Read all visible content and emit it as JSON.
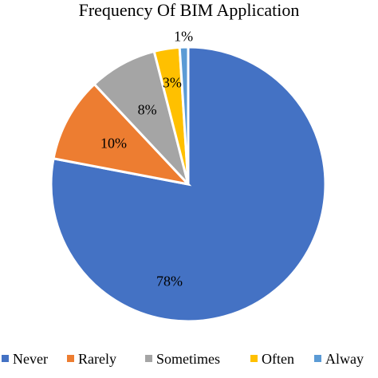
{
  "chart_data": {
    "type": "pie",
    "title": "Frequency Of BIM Application",
    "slices": [
      {
        "label": "Never",
        "value": 78,
        "display": "78%",
        "color": "#4472C4"
      },
      {
        "label": "Rarely",
        "value": 10,
        "display": "10%",
        "color": "#ED7D31"
      },
      {
        "label": "Sometimes",
        "value": 8,
        "display": "8%",
        "color": "#A5A5A5"
      },
      {
        "label": "Often",
        "value": 3,
        "display": "3%",
        "color": "#FFC000"
      },
      {
        "label": "Alway",
        "value": 1,
        "display": "1%",
        "color": "#5B9BD5"
      }
    ],
    "legend_position": "bottom",
    "grid": false
  }
}
